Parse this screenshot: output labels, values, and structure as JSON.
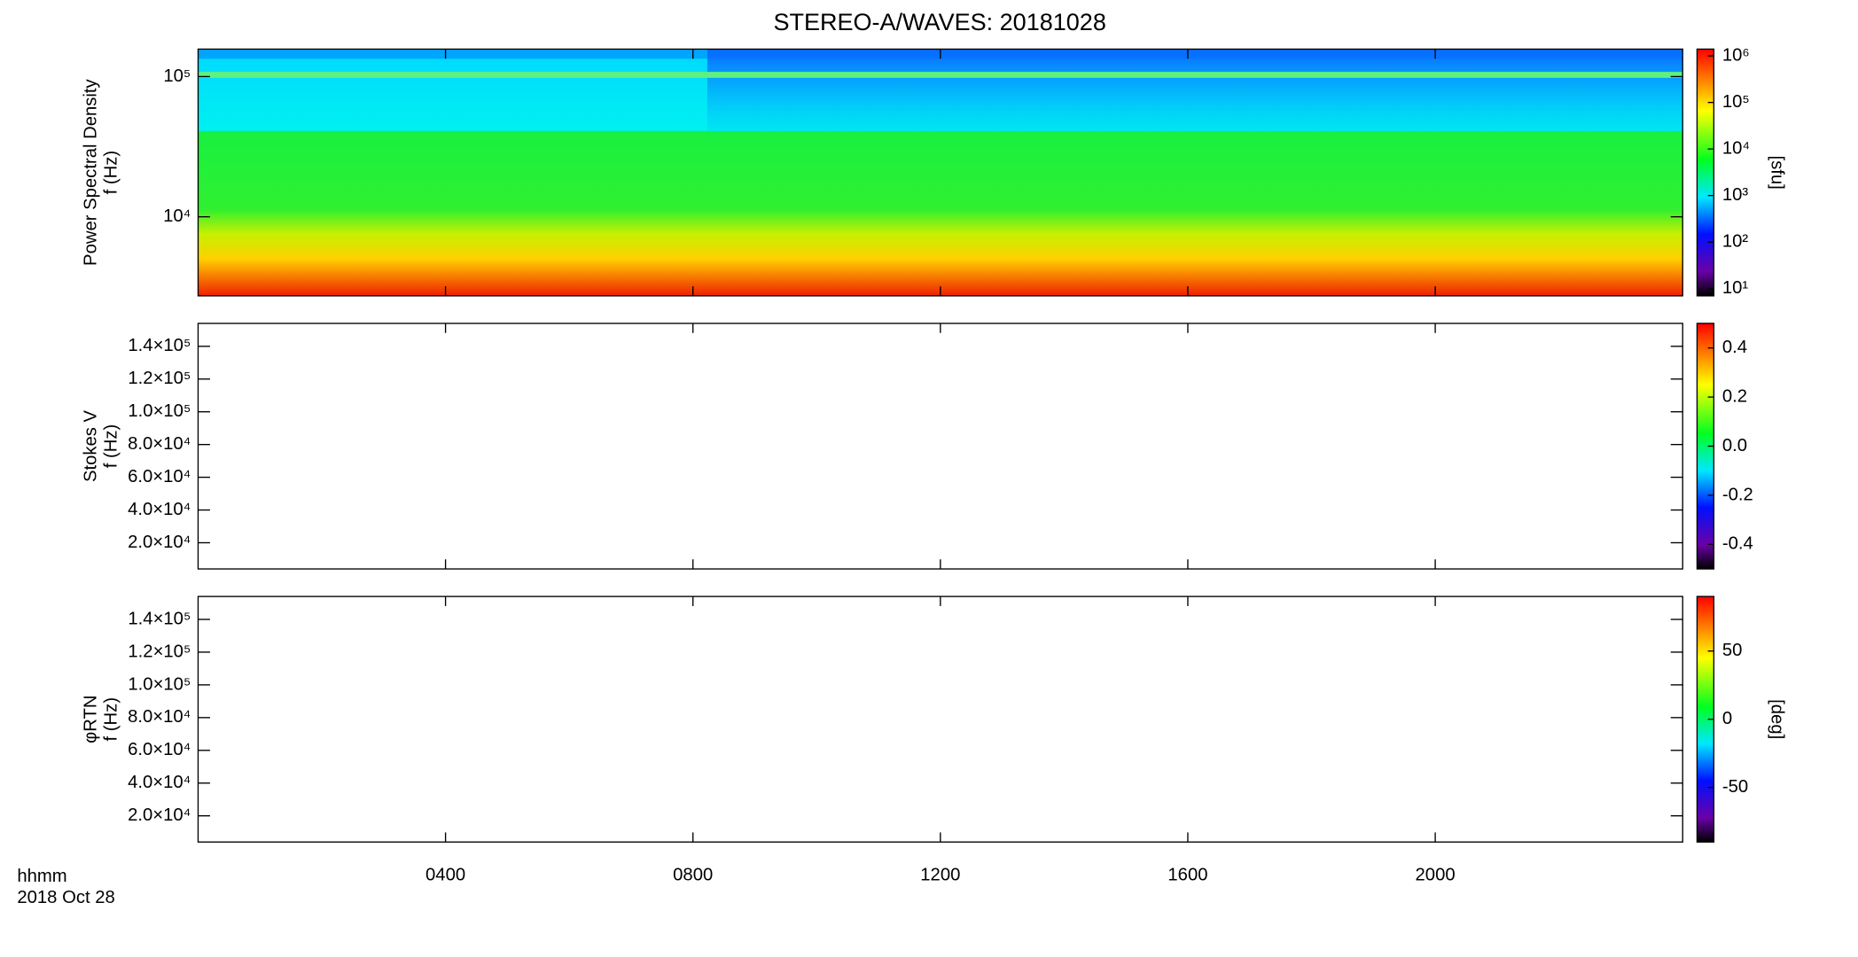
{
  "title": "STEREO-A/WAVES: 20181028",
  "x_label": [
    "hhmm",
    "2018 Oct 28"
  ],
  "xlim": [
    0,
    24
  ],
  "xticks": [
    {
      "value": 4,
      "label": "0400"
    },
    {
      "value": 8,
      "label": "0800"
    },
    {
      "value": 12,
      "label": "1200"
    },
    {
      "value": 16,
      "label": "1600"
    },
    {
      "value": 20,
      "label": "2000"
    }
  ],
  "chart_data": [
    {
      "type": "heatmap",
      "ylabel": [
        "Power Spectral Density",
        "f (Hz)"
      ],
      "ylog": true,
      "ylim": [
        2730,
        157000
      ],
      "yticks": [
        {
          "value": 10000,
          "label": "10⁴"
        },
        {
          "value": 100000,
          "label": "10⁵"
        }
      ],
      "colorbar": {
        "log": true,
        "clim": [
          7,
          1400000
        ],
        "label": "[sfu]",
        "ticks": [
          {
            "value": 10,
            "label": "10¹"
          },
          {
            "value": 100,
            "label": "10²"
          },
          {
            "value": 1000,
            "label": "10³"
          },
          {
            "value": 10000,
            "label": "10⁴"
          },
          {
            "value": 100000,
            "label": "10⁵"
          },
          {
            "value": 1000000,
            "label": "10⁶"
          }
        ]
      }
    },
    {
      "type": "heatmap",
      "ylabel": [
        "Stokes V",
        "f (Hz)"
      ],
      "ylog": false,
      "ylim": [
        4000,
        154000
      ],
      "yticks": [
        {
          "value": 20000,
          "label": "2.0×10⁴"
        },
        {
          "value": 40000,
          "label": "4.0×10⁴"
        },
        {
          "value": 60000,
          "label": "6.0×10⁴"
        },
        {
          "value": 80000,
          "label": "8.0×10⁴"
        },
        {
          "value": 100000,
          "label": "1.0×10⁵"
        },
        {
          "value": 120000,
          "label": "1.2×10⁵"
        },
        {
          "value": 140000,
          "label": "1.4×10⁵"
        }
      ],
      "colorbar": {
        "log": false,
        "clim": [
          -0.5,
          0.5
        ],
        "ticks": [
          {
            "value": -0.4,
            "label": "-0.4"
          },
          {
            "value": -0.2,
            "label": "-0.2"
          },
          {
            "value": 0,
            "label": "0.0"
          },
          {
            "value": 0.2,
            "label": "0.2"
          },
          {
            "value": 0.4,
            "label": "0.4"
          }
        ]
      }
    },
    {
      "type": "heatmap",
      "ylabel": [
        "φRTN",
        "f (Hz)"
      ],
      "ylog": false,
      "ylim": [
        4000,
        154000
      ],
      "yticks": [
        {
          "value": 20000,
          "label": "2.0×10⁴"
        },
        {
          "value": 40000,
          "label": "4.0×10⁴"
        },
        {
          "value": 60000,
          "label": "6.0×10⁴"
        },
        {
          "value": 80000,
          "label": "8.0×10⁴"
        },
        {
          "value": 100000,
          "label": "1.0×10⁵"
        },
        {
          "value": 120000,
          "label": "1.2×10⁵"
        },
        {
          "value": 140000,
          "label": "1.4×10⁵"
        }
      ],
      "colorbar": {
        "log": false,
        "clim": [
          -90,
          90
        ],
        "label": "[deg]",
        "ticks": [
          -50,
          0,
          50
        ]
      }
    }
  ]
}
